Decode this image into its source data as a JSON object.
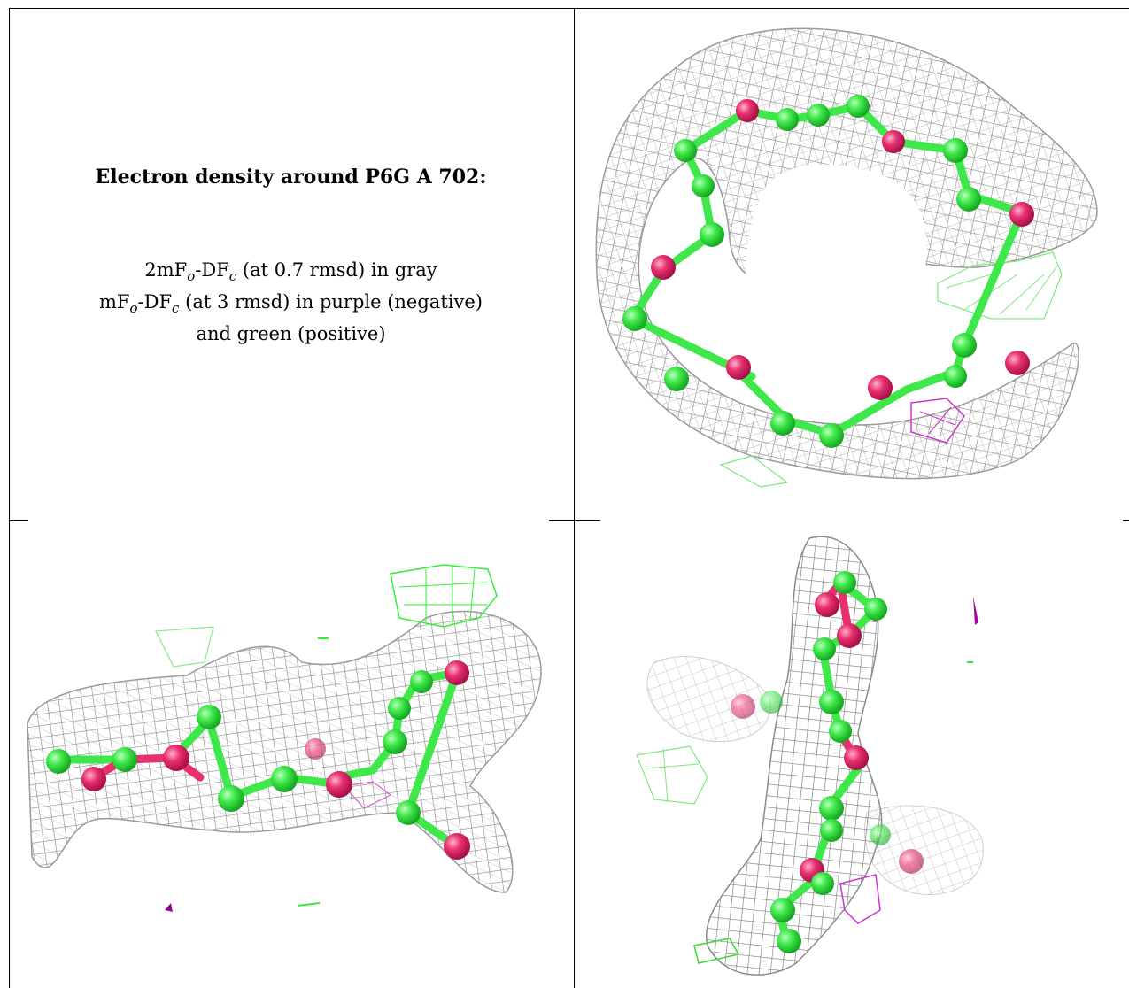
{
  "caption": {
    "title": "Electron density around P6G A 702:",
    "line1_pre": "2mF",
    "line1_sub1": "o",
    "line1_mid": "-DF",
    "line1_sub2": "c",
    "line1_post": " (at 0.7 rmsd) in gray",
    "line2_pre": "mF",
    "line2_sub1": "o",
    "line2_mid": "-DF",
    "line2_sub2": "c",
    "line2_post": " (at 3 rmsd) in purple (negative)",
    "line3": "and green (positive)"
  },
  "colors": {
    "mesh_gray": "#8c8c8c",
    "negative_density": "#cc33cc",
    "positive_density": "#33ee33",
    "carbon_atom": "#3fe84a",
    "oxygen_atom": "#e8306f"
  }
}
